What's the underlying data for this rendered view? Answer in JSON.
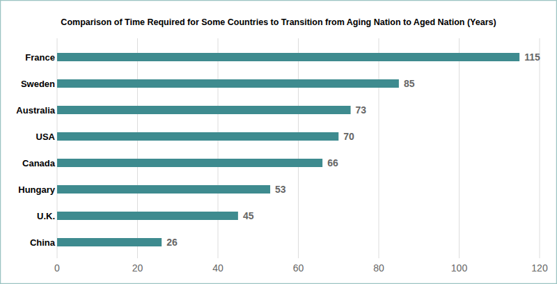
{
  "chart_data": {
    "type": "bar",
    "title": "Comparison of Time Required for Some Countries to Transition from Aging Nation to Aged Nation (Years)",
    "categories": [
      "France",
      "Sweden",
      "Australia",
      "USA",
      "Canada",
      "Hungary",
      "U.K.",
      "China"
    ],
    "values": [
      115,
      85,
      73,
      70,
      66,
      53,
      45,
      26
    ],
    "color": "#3e8b8f",
    "orientation": "horizontal",
    "data_labels": true,
    "grid": true,
    "xlim": [
      0,
      120
    ],
    "xticks": [
      0,
      20,
      40,
      60,
      80,
      100,
      120
    ]
  }
}
